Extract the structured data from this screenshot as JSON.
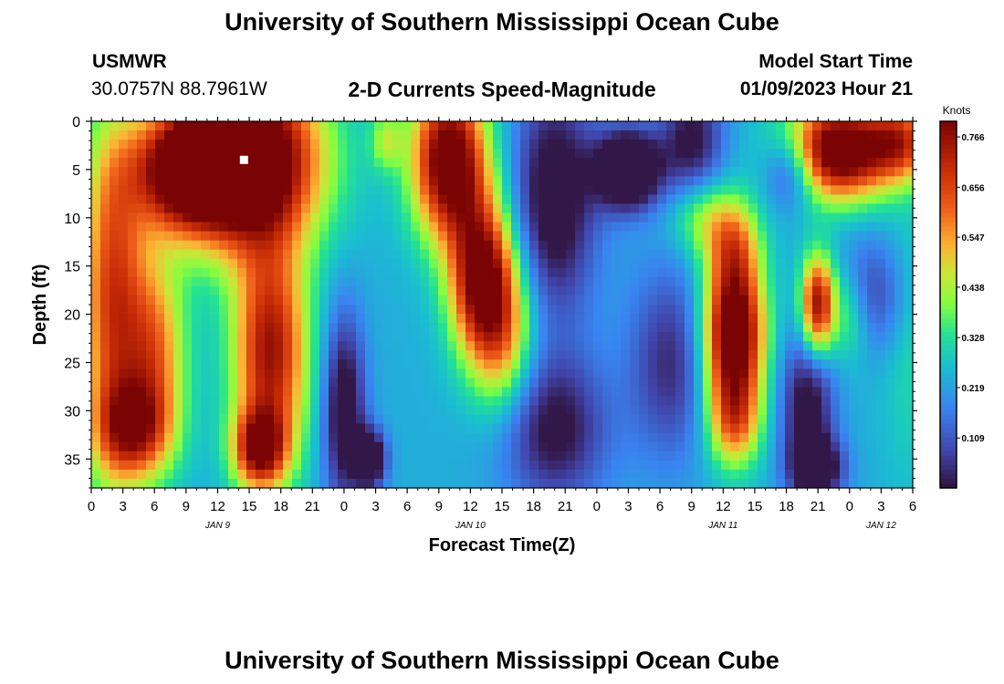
{
  "header": {
    "title": "University of Southern Mississippi Ocean Cube",
    "station": "USMWR",
    "coords": "30.0757N  88.7961W",
    "subtitle": "2-D Currents Speed-Magnitude",
    "model_label": "Model Start Time",
    "model_time": "01/09/2023 Hour 21"
  },
  "footer": {
    "title": "University of Southern Mississippi Ocean Cube"
  },
  "colors": {
    "background": "#ffffff",
    "marker": "#ffffff"
  },
  "chart_data": {
    "type": "heatmap",
    "title": "2-D Currents Speed-Magnitude",
    "xlabel": "Forecast Time(Z)",
    "ylabel": "Depth (ft)",
    "xlim": [
      0,
      78
    ],
    "ylim": [
      0,
      38
    ],
    "y_ticks": [
      0,
      5,
      10,
      15,
      20,
      25,
      30,
      35
    ],
    "x_tick_labels": [
      "0",
      "3",
      "6",
      "9",
      "12",
      "15",
      "18",
      "21",
      "0",
      "3",
      "6",
      "9",
      "12",
      "15",
      "18",
      "21",
      "0",
      "3",
      "6",
      "9",
      "12",
      "15",
      "18",
      "21",
      "0",
      "3",
      "6"
    ],
    "date_labels": [
      {
        "label": "JAN 9",
        "hour": 12
      },
      {
        "label": "JAN 10",
        "hour": 36
      },
      {
        "label": "JAN 11",
        "hour": 60
      },
      {
        "label": "JAN 12",
        "hour": 75
      }
    ],
    "colorbar": {
      "title": "Knots",
      "ticks": [
        "0.766",
        "0.656",
        "0.547",
        "0.438",
        "0.328",
        "0.219",
        "0.109"
      ],
      "tick_values": [
        0.766,
        0.656,
        0.547,
        0.438,
        0.328,
        0.219,
        0.109
      ],
      "range": [
        0.0,
        0.8
      ]
    },
    "marker": {
      "hour": 14.5,
      "depth": 4
    },
    "blobs": [
      {
        "hour": 15,
        "depth": 4,
        "v": 0.78,
        "sx": 6.5,
        "sy": 9
      },
      {
        "hour": 9,
        "depth": 5,
        "v": 0.6,
        "sx": 5,
        "sy": 6
      },
      {
        "hour": 17,
        "depth": 24,
        "v": 0.52,
        "sx": 3.5,
        "sy": 11
      },
      {
        "hour": 16,
        "depth": 34,
        "v": 0.48,
        "sx": 2.5,
        "sy": 4
      },
      {
        "hour": 2,
        "depth": 18,
        "v": 0.42,
        "sx": 3,
        "sy": 18
      },
      {
        "hour": 4,
        "depth": 32,
        "v": 0.38,
        "sx": 3.5,
        "sy": 5
      },
      {
        "hour": 6,
        "depth": 24,
        "v": 0.34,
        "sx": 3,
        "sy": 10
      },
      {
        "hour": 28,
        "depth": 2,
        "v": 0.18,
        "sx": 1.5,
        "sy": 3
      },
      {
        "hour": 24,
        "depth": 30,
        "v": -0.3,
        "sx": 2,
        "sy": 10
      },
      {
        "hour": 26.5,
        "depth": 35,
        "v": -0.35,
        "sx": 1.5,
        "sy": 3
      },
      {
        "hour": 34,
        "depth": 4,
        "v": 0.65,
        "sx": 3.5,
        "sy": 8
      },
      {
        "hour": 37,
        "depth": 16,
        "v": 0.55,
        "sx": 3,
        "sy": 8
      },
      {
        "hour": 39,
        "depth": 22,
        "v": 0.3,
        "sx": 3,
        "sy": 8
      },
      {
        "hour": 44,
        "depth": 8,
        "v": -0.3,
        "sx": 4,
        "sy": 12
      },
      {
        "hour": 44,
        "depth": 32,
        "v": -0.25,
        "sx": 5,
        "sy": 8
      },
      {
        "hour": 51,
        "depth": 5,
        "v": -0.45,
        "sx": 3,
        "sy": 4
      },
      {
        "hour": 55,
        "depth": 25,
        "v": -0.2,
        "sx": 4,
        "sy": 10
      },
      {
        "hour": 58,
        "depth": 10,
        "v": 0.18,
        "sx": 3,
        "sy": 4
      },
      {
        "hour": 61,
        "depth": 22,
        "v": 0.7,
        "sx": 2.8,
        "sy": 7
      },
      {
        "hour": 61,
        "depth": 13,
        "v": 0.3,
        "sx": 2.5,
        "sy": 5
      },
      {
        "hour": 61,
        "depth": 31,
        "v": 0.35,
        "sx": 2.5,
        "sy": 5
      },
      {
        "hour": 57,
        "depth": 2,
        "v": -0.25,
        "sx": 3,
        "sy": 6
      },
      {
        "hour": 66.5,
        "depth": 5,
        "v": -0.25,
        "sx": 2.5,
        "sy": 4
      },
      {
        "hour": 68,
        "depth": 30,
        "v": -0.28,
        "sx": 2.5,
        "sy": 8
      },
      {
        "hour": 69,
        "depth": 36,
        "v": -0.28,
        "sx": 2.5,
        "sy": 3
      },
      {
        "hour": 71,
        "depth": 3,
        "v": 0.68,
        "sx": 5,
        "sy": 5
      },
      {
        "hour": 77,
        "depth": 2,
        "v": 0.35,
        "sx": 3,
        "sy": 4
      },
      {
        "hour": 69,
        "depth": 19,
        "v": 0.55,
        "sx": 1.6,
        "sy": 5
      },
      {
        "hour": 72,
        "depth": 20,
        "v": 0.18,
        "sx": 2,
        "sy": 5
      },
      {
        "hour": 74,
        "depth": 18,
        "v": -0.18,
        "sx": 3.5,
        "sy": 6
      },
      {
        "hour": 78,
        "depth": 22,
        "v": 0.08,
        "sx": 3,
        "sy": 15
      }
    ]
  }
}
